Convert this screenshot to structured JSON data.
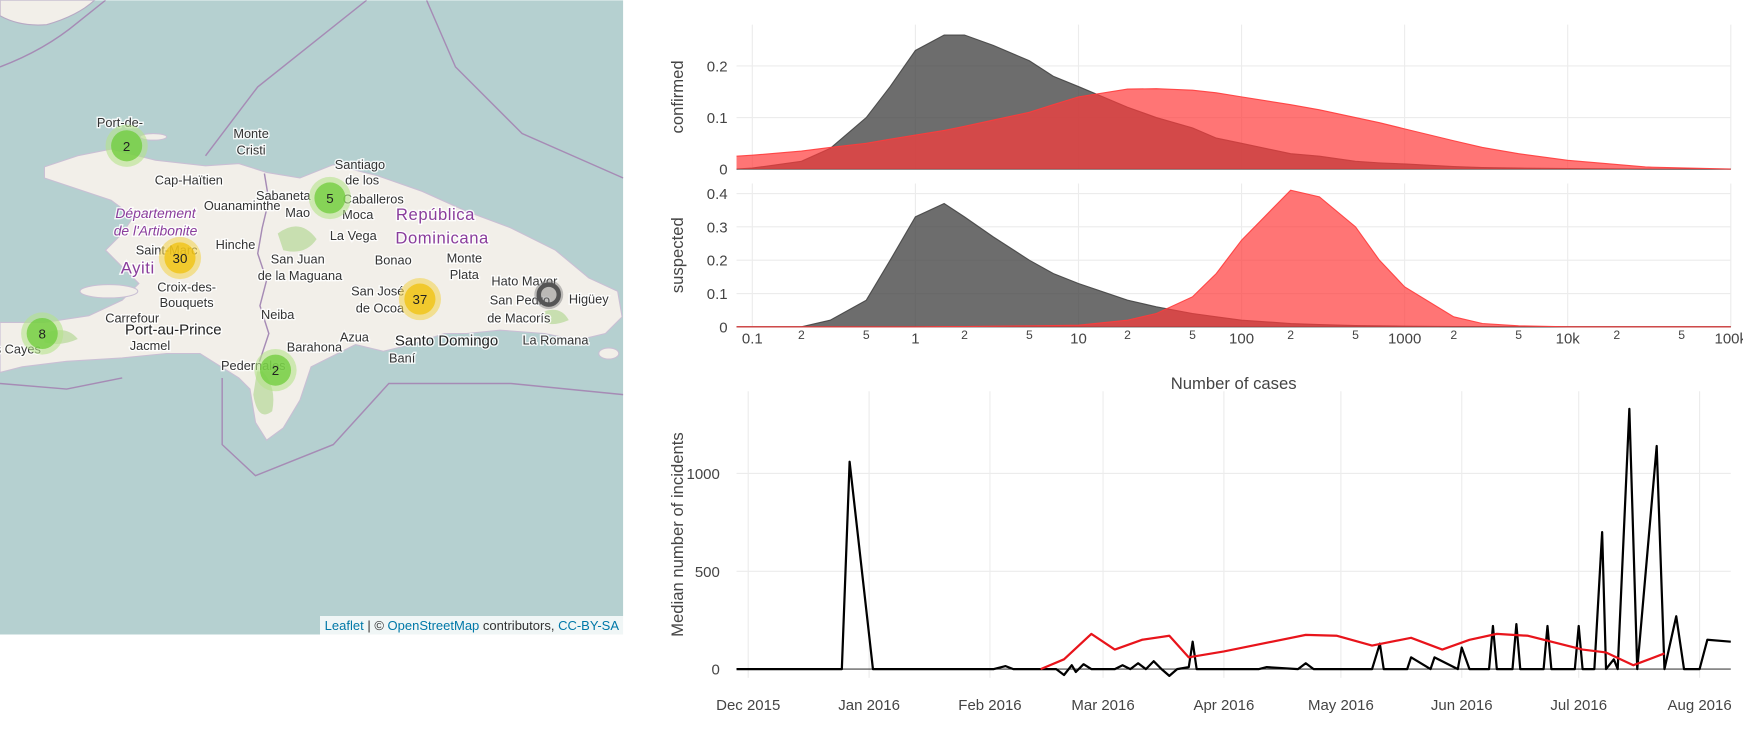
{
  "map": {
    "clusters": [
      2,
      5,
      30,
      37,
      8,
      2
    ],
    "place_labels": [
      "Port-de-",
      "Monte",
      "Cristi",
      "Cap-Haïtien",
      "Ouanaminthe",
      "Santiago",
      "de los",
      "Sabaneta",
      "Caballeros",
      "Mao",
      "República",
      "Dominicana",
      "Département",
      "de l'Artibonite",
      "Hinche",
      "Moca",
      "La Vega",
      "Saint-Marc",
      "Ayiti",
      "San Juan",
      "de la Maguana",
      "Bonao",
      "Monte",
      "Plata",
      "Hato Mayor",
      "San Pedro",
      "de Macorís",
      "Higüey",
      "Croix-des-",
      "Bouquets",
      "Carrefour",
      "Port-au-Prince",
      "Jacmel",
      "Neiba",
      "San José",
      "de Ocoa",
      "Santo Domingo",
      "La Romana",
      "Barahona",
      "Azua",
      "Baní",
      "Pedernales",
      "s Cayes"
    ],
    "attribution": [
      "Leaflet",
      " | © ",
      "OpenStreetMap",
      " contributors, ",
      "CC-BY-SA"
    ]
  },
  "chart_data": [
    {
      "type": "area",
      "ylabel": "confirmed",
      "xscale": "log",
      "xlim": [
        0.08,
        100000
      ],
      "ylim": [
        0,
        0.28
      ],
      "yticks": [
        0,
        0.1,
        0.2
      ],
      "grid": true,
      "x": [
        0.08,
        0.1,
        0.2,
        0.3,
        0.5,
        0.7,
        1,
        1.5,
        2,
        3,
        5,
        7,
        10,
        20,
        30,
        50,
        70,
        100,
        200,
        300,
        500,
        700,
        1000,
        2000,
        3000,
        5000,
        10000,
        30000,
        100000
      ],
      "series": [
        {
          "color": "#444444",
          "values": [
            0,
            0.002,
            0.015,
            0.04,
            0.1,
            0.16,
            0.23,
            0.26,
            0.26,
            0.24,
            0.21,
            0.18,
            0.16,
            0.12,
            0.1,
            0.08,
            0.06,
            0.05,
            0.03,
            0.025,
            0.015,
            0.012,
            0.01,
            0.005,
            0.003,
            0.002,
            0.001,
            0,
            0
          ]
        },
        {
          "color": "#ff3b3b",
          "values": [
            0.025,
            0.027,
            0.035,
            0.042,
            0.05,
            0.058,
            0.066,
            0.075,
            0.083,
            0.095,
            0.11,
            0.125,
            0.14,
            0.155,
            0.156,
            0.153,
            0.148,
            0.14,
            0.125,
            0.115,
            0.1,
            0.09,
            0.078,
            0.055,
            0.042,
            0.03,
            0.017,
            0.004,
            0
          ]
        }
      ]
    },
    {
      "type": "area",
      "ylabel": "suspected",
      "xlabel": "Number of cases",
      "xscale": "log",
      "xlim": [
        0.08,
        100000
      ],
      "ylim": [
        0,
        0.43
      ],
      "yticks": [
        0,
        0.1,
        0.2,
        0.3,
        0.4
      ],
      "grid": true,
      "xticks": [
        0.1,
        {
          "value": 0.2,
          "label": "2"
        },
        {
          "value": 0.5,
          "label": "5"
        },
        1,
        {
          "value": 2,
          "label": "2"
        },
        {
          "value": 5,
          "label": "5"
        },
        10,
        {
          "value": 20,
          "label": "2"
        },
        {
          "value": 50,
          "label": "5"
        },
        100,
        {
          "value": 200,
          "label": "2"
        },
        {
          "value": 500,
          "label": "5"
        },
        1000,
        {
          "value": 2000,
          "label": "2"
        },
        {
          "value": 5000,
          "label": "5"
        },
        {
          "value": 10000,
          "label": "10k"
        },
        {
          "value": 20000,
          "label": "2"
        },
        {
          "value": 50000,
          "label": "5"
        },
        {
          "value": 100000,
          "label": "100k"
        }
      ],
      "x": [
        0.08,
        0.1,
        0.2,
        0.3,
        0.5,
        0.7,
        1,
        1.5,
        2,
        3,
        5,
        7,
        10,
        20,
        30,
        50,
        70,
        100,
        200,
        300,
        500,
        700,
        1000,
        2000,
        3000,
        5000,
        10000,
        30000,
        100000
      ],
      "series": [
        {
          "color": "#444444",
          "values": [
            0,
            0,
            0,
            0.02,
            0.08,
            0.2,
            0.33,
            0.37,
            0.33,
            0.27,
            0.2,
            0.16,
            0.13,
            0.08,
            0.06,
            0.04,
            0.03,
            0.02,
            0.01,
            0.007,
            0.004,
            0.003,
            0.002,
            0.001,
            0.001,
            0,
            0,
            0,
            0
          ]
        },
        {
          "color": "#ff3b3b",
          "values": [
            0,
            0,
            0,
            0,
            0,
            0,
            0,
            0.001,
            0.001,
            0.002,
            0.003,
            0.004,
            0.005,
            0.02,
            0.04,
            0.09,
            0.16,
            0.26,
            0.41,
            0.39,
            0.3,
            0.2,
            0.12,
            0.03,
            0.01,
            0.003,
            0,
            0,
            0
          ]
        }
      ]
    },
    {
      "type": "line",
      "ylabel": "Median number of incidents",
      "xlim": [
        "2015-11-28",
        "2016-08-09"
      ],
      "ylim": [
        -45,
        1420
      ],
      "yticks": [
        0,
        500,
        1000
      ],
      "grid": true,
      "xticks": [
        {
          "value": "2015-12-01",
          "label": "Dec 2015"
        },
        {
          "value": "2016-01-01",
          "label": "Jan 2016"
        },
        {
          "value": "2016-02-01",
          "label": "Feb 2016"
        },
        {
          "value": "2016-03-01",
          "label": "Mar 2016"
        },
        {
          "value": "2016-04-01",
          "label": "Apr 2016"
        },
        {
          "value": "2016-05-01",
          "label": "May 2016"
        },
        {
          "value": "2016-06-01",
          "label": "Jun 2016"
        },
        {
          "value": "2016-07-01",
          "label": "Jul 2016"
        },
        {
          "value": "2016-08-01",
          "label": "Aug 2016"
        }
      ],
      "series": [
        {
          "color": "#000000",
          "x": [
            "2015-11-28",
            "2015-12-25",
            "2015-12-27",
            "2016-01-02",
            "2016-02-02",
            "2016-02-05",
            "2016-02-07",
            "2016-02-18",
            "2016-02-20",
            "2016-02-22",
            "2016-02-23",
            "2016-02-25",
            "2016-02-27",
            "2016-03-04",
            "2016-03-06",
            "2016-03-08",
            "2016-03-10",
            "2016-03-12",
            "2016-03-14",
            "2016-03-16",
            "2016-03-18",
            "2016-03-20",
            "2016-03-23",
            "2016-03-24",
            "2016-03-25",
            "2016-04-10",
            "2016-04-12",
            "2016-04-20",
            "2016-04-22",
            "2016-04-24",
            "2016-05-09",
            "2016-05-11",
            "2016-05-12",
            "2016-05-18",
            "2016-05-19",
            "2016-05-24",
            "2016-05-25",
            "2016-05-31",
            "2016-06-01",
            "2016-06-03",
            "2016-06-08",
            "2016-06-09",
            "2016-06-10",
            "2016-06-14",
            "2016-06-15",
            "2016-06-16",
            "2016-06-22",
            "2016-06-23",
            "2016-06-24",
            "2016-06-30",
            "2016-07-01",
            "2016-07-02",
            "2016-07-05",
            "2016-07-07",
            "2016-07-08",
            "2016-07-10",
            "2016-07-11",
            "2016-07-14",
            "2016-07-16",
            "2016-07-21",
            "2016-07-23",
            "2016-07-26",
            "2016-07-28",
            "2016-08-01",
            "2016-08-03",
            "2016-08-09"
          ],
          "values": [
            0,
            0,
            1060,
            0,
            0,
            15,
            0,
            0,
            -30,
            20,
            -15,
            25,
            0,
            0,
            20,
            0,
            30,
            0,
            40,
            0,
            -35,
            0,
            10,
            140,
            0,
            0,
            10,
            0,
            30,
            0,
            0,
            130,
            0,
            0,
            60,
            0,
            60,
            0,
            110,
            0,
            0,
            220,
            0,
            0,
            230,
            0,
            0,
            220,
            0,
            0,
            220,
            0,
            0,
            700,
            0,
            50,
            0,
            1330,
            0,
            1140,
            0,
            270,
            0,
            0,
            150,
            140
          ]
        },
        {
          "color": "#e8141b",
          "x": [
            "2016-02-14",
            "2016-02-20",
            "2016-02-27",
            "2016-03-04",
            "2016-03-11",
            "2016-03-18",
            "2016-03-23",
            "2016-04-01",
            "2016-04-22",
            "2016-04-30",
            "2016-05-09",
            "2016-05-19",
            "2016-05-27",
            "2016-06-03",
            "2016-06-10",
            "2016-06-18",
            "2016-07-02",
            "2016-07-08",
            "2016-07-15",
            "2016-07-23"
          ],
          "values": [
            0,
            50,
            180,
            100,
            150,
            170,
            60,
            90,
            175,
            170,
            120,
            160,
            100,
            150,
            180,
            170,
            100,
            85,
            20,
            80
          ]
        }
      ]
    }
  ]
}
